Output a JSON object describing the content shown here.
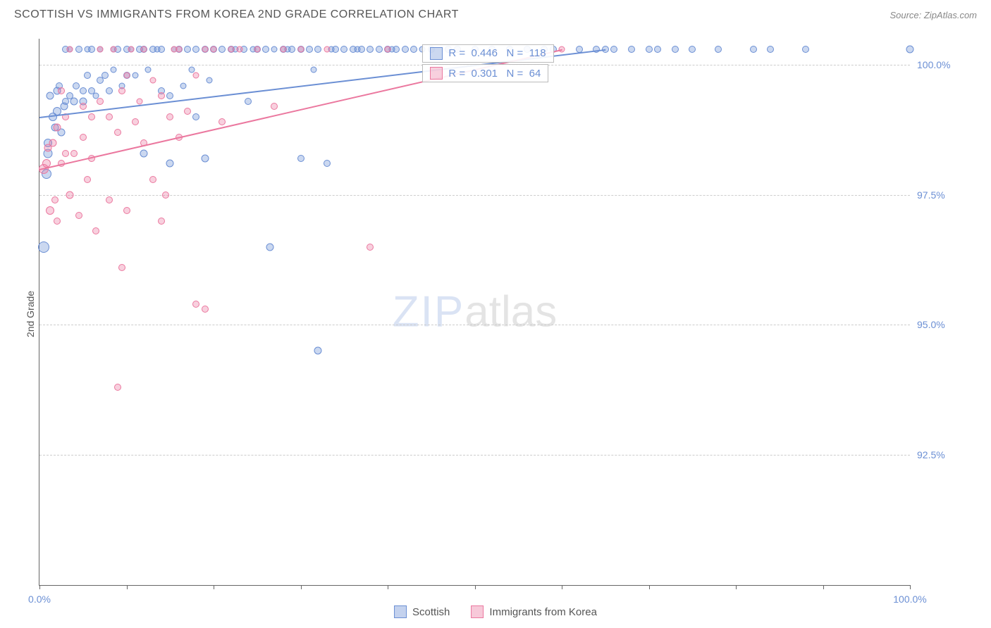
{
  "header": {
    "title": "SCOTTISH VS IMMIGRANTS FROM KOREA 2ND GRADE CORRELATION CHART",
    "source": "Source: ZipAtlas.com"
  },
  "ylabel": "2nd Grade",
  "watermark": {
    "part1": "ZIP",
    "part2": "atlas"
  },
  "axes": {
    "y_min": 90.0,
    "y_max": 100.5,
    "y_ticks": [
      92.5,
      95.0,
      97.5,
      100.0
    ],
    "y_tick_labels": [
      "92.5%",
      "95.0%",
      "97.5%",
      "100.0%"
    ],
    "x_min": 0,
    "x_max": 100,
    "x_ticks": [
      0,
      10,
      20,
      30,
      40,
      50,
      60,
      70,
      80,
      90,
      100
    ],
    "x_labels": {
      "min": "0.0%",
      "max": "100.0%"
    },
    "grid_color": "#cccccc",
    "axis_color": "#666666",
    "tick_label_color": "#6b8fd4"
  },
  "series": [
    {
      "name": "Scottish",
      "color_fill": "rgba(107,143,212,0.35)",
      "color_stroke": "#6b8fd4",
      "R": "0.446",
      "N": "118",
      "trend": {
        "x1": 0,
        "y1": 99.0,
        "x2": 65,
        "y2": 100.3
      },
      "points": [
        [
          0.5,
          96.5,
          16
        ],
        [
          0.8,
          97.9,
          14
        ],
        [
          1,
          98.3,
          13
        ],
        [
          1,
          98.5,
          12
        ],
        [
          1.2,
          99.4,
          11
        ],
        [
          1.5,
          99.0,
          12
        ],
        [
          1.8,
          98.8,
          11
        ],
        [
          2,
          99.1,
          12
        ],
        [
          2,
          99.5,
          11
        ],
        [
          2.3,
          99.6,
          10
        ],
        [
          2.5,
          98.7,
          11
        ],
        [
          2.8,
          99.2,
          11
        ],
        [
          3,
          99.3,
          10
        ],
        [
          3,
          100.3,
          10
        ],
        [
          3.5,
          99.4,
          10
        ],
        [
          3.5,
          100.3,
          9
        ],
        [
          4,
          99.3,
          11
        ],
        [
          4.2,
          99.6,
          10
        ],
        [
          4.5,
          100.3,
          10
        ],
        [
          5,
          99.3,
          11
        ],
        [
          5,
          99.5,
          10
        ],
        [
          5.5,
          99.8,
          10
        ],
        [
          5.5,
          100.3,
          9
        ],
        [
          6,
          99.5,
          10
        ],
        [
          6,
          100.3,
          10
        ],
        [
          6.5,
          99.4,
          9
        ],
        [
          7,
          99.7,
          10
        ],
        [
          7,
          100.3,
          9
        ],
        [
          7.5,
          99.8,
          10
        ],
        [
          8,
          99.5,
          10
        ],
        [
          8.5,
          100.3,
          9
        ],
        [
          8.5,
          99.9,
          9
        ],
        [
          9,
          100.3,
          10
        ],
        [
          9.5,
          99.6,
          9
        ],
        [
          10,
          99.8,
          10
        ],
        [
          10,
          100.3,
          10
        ],
        [
          10.5,
          100.3,
          9
        ],
        [
          11,
          99.8,
          9
        ],
        [
          11.5,
          100.3,
          10
        ],
        [
          12,
          98.3,
          11
        ],
        [
          12,
          100.3,
          10
        ],
        [
          12.5,
          99.9,
          9
        ],
        [
          13,
          100.3,
          10
        ],
        [
          13.5,
          100.3,
          9
        ],
        [
          14,
          99.5,
          10
        ],
        [
          14,
          100.3,
          10
        ],
        [
          15,
          98.1,
          11
        ],
        [
          15,
          99.4,
          10
        ],
        [
          15.5,
          100.3,
          9
        ],
        [
          16,
          100.3,
          10
        ],
        [
          16.5,
          99.6,
          9
        ],
        [
          17,
          100.3,
          10
        ],
        [
          17.5,
          99.9,
          9
        ],
        [
          18,
          99.0,
          10
        ],
        [
          18,
          100.3,
          10
        ],
        [
          19,
          98.2,
          11
        ],
        [
          19,
          100.3,
          10
        ],
        [
          19.5,
          99.7,
          9
        ],
        [
          20,
          100.3,
          10
        ],
        [
          21,
          100.3,
          10
        ],
        [
          22,
          100.3,
          10
        ],
        [
          22.5,
          100.3,
          9
        ],
        [
          23.5,
          100.3,
          10
        ],
        [
          24,
          99.3,
          10
        ],
        [
          24.5,
          100.3,
          9
        ],
        [
          25,
          100.3,
          10
        ],
        [
          26,
          100.3,
          10
        ],
        [
          26.5,
          96.5,
          11
        ],
        [
          27,
          100.3,
          9
        ],
        [
          28,
          100.3,
          10
        ],
        [
          28.5,
          100.3,
          9
        ],
        [
          29,
          100.3,
          10
        ],
        [
          30,
          100.3,
          10
        ],
        [
          30,
          98.2,
          10
        ],
        [
          31,
          100.3,
          10
        ],
        [
          31.5,
          99.9,
          9
        ],
        [
          32,
          100.3,
          10
        ],
        [
          32,
          94.5,
          11
        ],
        [
          33,
          98.1,
          10
        ],
        [
          33.5,
          100.3,
          9
        ],
        [
          34,
          100.3,
          10
        ],
        [
          35,
          100.3,
          10
        ],
        [
          36,
          100.3,
          10
        ],
        [
          36.5,
          100.3,
          9
        ],
        [
          37,
          100.3,
          10
        ],
        [
          38,
          100.3,
          10
        ],
        [
          39,
          100.3,
          10
        ],
        [
          40,
          100.3,
          10
        ],
        [
          40.5,
          100.3,
          9
        ],
        [
          41,
          100.3,
          10
        ],
        [
          42,
          100.3,
          10
        ],
        [
          43,
          100.3,
          10
        ],
        [
          44,
          100.3,
          9
        ],
        [
          45,
          100.3,
          10
        ],
        [
          47,
          100.3,
          10
        ],
        [
          48,
          100.3,
          10
        ],
        [
          50,
          100.3,
          10
        ],
        [
          52,
          100.3,
          10
        ],
        [
          54,
          100.3,
          10
        ],
        [
          56,
          100.3,
          10
        ],
        [
          58,
          100.3,
          10
        ],
        [
          59,
          100.3,
          10
        ],
        [
          62,
          100.3,
          10
        ],
        [
          64,
          100.3,
          10
        ],
        [
          65,
          100.3,
          10
        ],
        [
          66,
          100.3,
          10
        ],
        [
          68,
          100.3,
          10
        ],
        [
          70,
          100.3,
          10
        ],
        [
          71,
          100.3,
          10
        ],
        [
          73,
          100.3,
          10
        ],
        [
          75,
          100.3,
          10
        ],
        [
          78,
          100.3,
          10
        ],
        [
          82,
          100.3,
          10
        ],
        [
          84,
          100.3,
          10
        ],
        [
          88,
          100.3,
          10
        ],
        [
          100,
          100.3,
          11
        ]
      ]
    },
    {
      "name": "Immigrants from Korea",
      "color_fill": "rgba(235,120,160,0.35)",
      "color_stroke": "#eb789f",
      "R": "0.301",
      "N": "64",
      "trend": {
        "x1": 0,
        "y1": 98.0,
        "x2": 60,
        "y2": 100.3
      },
      "points": [
        [
          0.5,
          98.0,
          14
        ],
        [
          0.8,
          98.1,
          12
        ],
        [
          1,
          98.4,
          11
        ],
        [
          1.2,
          97.2,
          12
        ],
        [
          1.5,
          98.5,
          11
        ],
        [
          1.8,
          97.4,
          10
        ],
        [
          2,
          98.8,
          11
        ],
        [
          2,
          97.0,
          10
        ],
        [
          2.5,
          99.5,
          10
        ],
        [
          2.5,
          98.1,
          10
        ],
        [
          3,
          99.0,
          10
        ],
        [
          3,
          98.3,
          10
        ],
        [
          3.5,
          97.5,
          11
        ],
        [
          3.5,
          100.3,
          9
        ],
        [
          4,
          98.3,
          10
        ],
        [
          4.5,
          97.1,
          10
        ],
        [
          5,
          98.6,
          10
        ],
        [
          5,
          99.2,
          10
        ],
        [
          5.5,
          97.8,
          10
        ],
        [
          6,
          99.0,
          10
        ],
        [
          6,
          98.2,
          10
        ],
        [
          6.5,
          96.8,
          10
        ],
        [
          7,
          99.3,
          10
        ],
        [
          7,
          100.3,
          9
        ],
        [
          8,
          99.0,
          10
        ],
        [
          8,
          97.4,
          10
        ],
        [
          8.5,
          100.3,
          9
        ],
        [
          9,
          98.7,
          10
        ],
        [
          9.5,
          99.5,
          10
        ],
        [
          9.5,
          96.1,
          10
        ],
        [
          10,
          97.2,
          10
        ],
        [
          10,
          99.8,
          9
        ],
        [
          10.5,
          100.3,
          9
        ],
        [
          11,
          98.9,
          10
        ],
        [
          11.5,
          99.3,
          9
        ],
        [
          12,
          98.5,
          10
        ],
        [
          12,
          100.3,
          9
        ],
        [
          13,
          97.8,
          10
        ],
        [
          13,
          99.7,
          9
        ],
        [
          14,
          99.4,
          10
        ],
        [
          14.5,
          97.5,
          10
        ],
        [
          15,
          99.0,
          10
        ],
        [
          15.5,
          100.3,
          9
        ],
        [
          16,
          98.6,
          10
        ],
        [
          16,
          100.3,
          9
        ],
        [
          17,
          99.1,
          10
        ],
        [
          18,
          95.4,
          10
        ],
        [
          18,
          99.8,
          9
        ],
        [
          19,
          100.3,
          9
        ],
        [
          19,
          95.3,
          10
        ],
        [
          20,
          100.3,
          9
        ],
        [
          21,
          98.9,
          10
        ],
        [
          22,
          100.3,
          9
        ],
        [
          23,
          100.3,
          9
        ],
        [
          25,
          100.3,
          9
        ],
        [
          27,
          99.2,
          10
        ],
        [
          28,
          100.3,
          9
        ],
        [
          30,
          100.3,
          9
        ],
        [
          33,
          100.3,
          9
        ],
        [
          38,
          96.5,
          10
        ],
        [
          40,
          100.3,
          9
        ],
        [
          9,
          93.8,
          10
        ],
        [
          14,
          97.0,
          10
        ],
        [
          60,
          100.3,
          9
        ]
      ]
    }
  ],
  "stat_boxes": [
    {
      "series_idx": 0,
      "top_pct": 1,
      "text_r": "R =",
      "text_n": "N ="
    },
    {
      "series_idx": 1,
      "top_pct": 4.7,
      "text_r": "R =",
      "text_n": "N ="
    }
  ],
  "legend": {
    "items": [
      {
        "label": "Scottish",
        "fill": "rgba(107,143,212,0.4)",
        "stroke": "#6b8fd4"
      },
      {
        "label": "Immigrants from Korea",
        "fill": "rgba(235,120,160,0.4)",
        "stroke": "#eb789f"
      }
    ]
  }
}
